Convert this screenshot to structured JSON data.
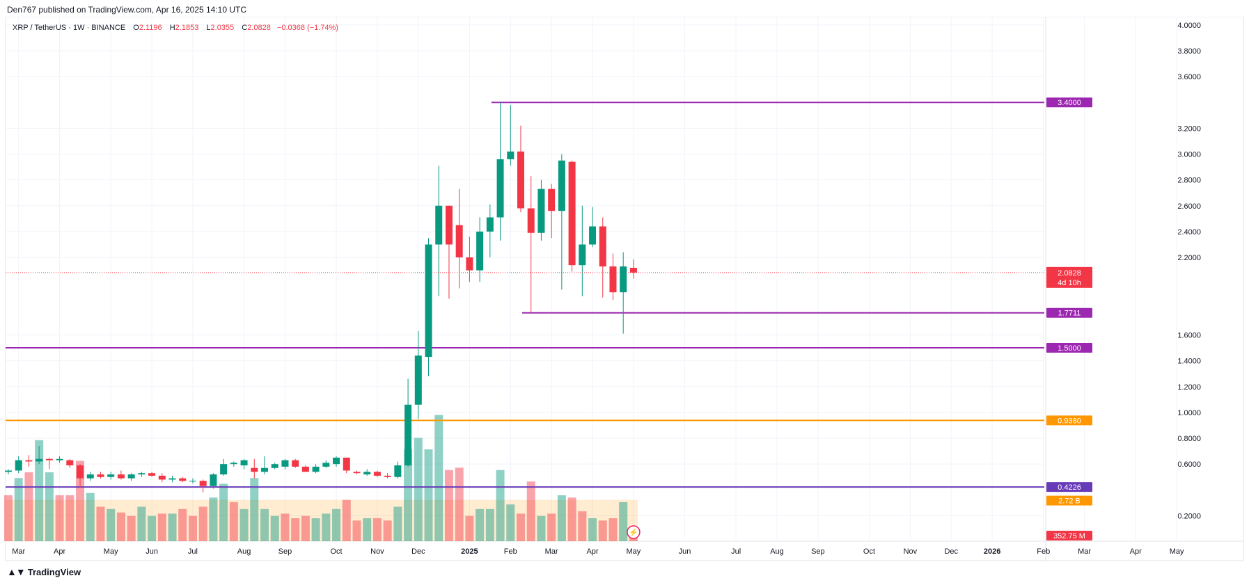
{
  "header": {
    "publisher": "Den767 published on TradingView.com, Apr 16, 2025 14:10 UTC"
  },
  "symbol": {
    "name": "XRP / TetherUS · 1W · BINANCE",
    "open_label": "O",
    "open": "2.1196",
    "high_label": "H",
    "high": "2.1853",
    "low_label": "L",
    "low": "2.0355",
    "close_label": "C",
    "close": "2.0828",
    "change": "−0.0368 (−1.74%)"
  },
  "footer": {
    "brand": "TradingView",
    "logo_icon": "tradingview-logo-icon"
  },
  "colors": {
    "up": "#089981",
    "down": "#f23645",
    "level_purple": "#9c27b0",
    "level_violet": "#673ab7",
    "level_orange": "#ff9800",
    "grid": "#f0f3fa",
    "axis_text": "#131722"
  },
  "chart_data": {
    "type": "candlestick",
    "timeframe": "1W",
    "ylim": [
      0,
      4.0
    ],
    "y_ticks": [
      "4.0000",
      "3.8000",
      "3.6000",
      "3.2000",
      "3.0000",
      "2.8000",
      "2.6000",
      "2.4000",
      "2.2000",
      "1.6000",
      "1.4000",
      "1.2000",
      "1.0000",
      "0.8000",
      "0.6000",
      "0.2000"
    ],
    "x_labels": [
      {
        "label": "Mar",
        "week": 1
      },
      {
        "label": "Apr",
        "week": 5
      },
      {
        "label": "May",
        "week": 10
      },
      {
        "label": "Jun",
        "week": 14
      },
      {
        "label": "Jul",
        "week": 18
      },
      {
        "label": "Aug",
        "week": 23
      },
      {
        "label": "Sep",
        "week": 27
      },
      {
        "label": "Oct",
        "week": 32
      },
      {
        "label": "Nov",
        "week": 36
      },
      {
        "label": "Dec",
        "week": 40
      },
      {
        "label": "2025",
        "week": 45
      },
      {
        "label": "Feb",
        "week": 49
      },
      {
        "label": "Mar",
        "week": 53
      },
      {
        "label": "Apr",
        "week": 57
      },
      {
        "label": "May",
        "week": 61
      },
      {
        "label": "Jun",
        "week": 66
      },
      {
        "label": "Jul",
        "week": 71
      },
      {
        "label": "Aug",
        "week": 75
      },
      {
        "label": "Sep",
        "week": 79
      },
      {
        "label": "Oct",
        "week": 84
      },
      {
        "label": "Nov",
        "week": 88
      },
      {
        "label": "Dec",
        "week": 92
      },
      {
        "label": "2026",
        "week": 96
      },
      {
        "label": "Feb",
        "week": 101
      },
      {
        "label": "Mar",
        "week": 105
      },
      {
        "label": "Apr",
        "week": 110
      },
      {
        "label": "May",
        "week": 114
      }
    ],
    "bold_x_labels": [
      "2025",
      "2026"
    ],
    "candles": [
      {
        "o": 0.54,
        "h": 0.56,
        "l": 0.52,
        "c": 0.55
      },
      {
        "o": 0.55,
        "h": 0.66,
        "l": 0.53,
        "c": 0.63
      },
      {
        "o": 0.63,
        "h": 0.67,
        "l": 0.58,
        "c": 0.62
      },
      {
        "o": 0.62,
        "h": 0.74,
        "l": 0.6,
        "c": 0.64
      },
      {
        "o": 0.64,
        "h": 0.65,
        "l": 0.56,
        "c": 0.63
      },
      {
        "o": 0.63,
        "h": 0.66,
        "l": 0.61,
        "c": 0.64
      },
      {
        "o": 0.63,
        "h": 0.64,
        "l": 0.57,
        "c": 0.59
      },
      {
        "o": 0.59,
        "h": 0.6,
        "l": 0.42,
        "c": 0.49
      },
      {
        "o": 0.49,
        "h": 0.54,
        "l": 0.47,
        "c": 0.52
      },
      {
        "o": 0.52,
        "h": 0.54,
        "l": 0.49,
        "c": 0.5
      },
      {
        "o": 0.5,
        "h": 0.54,
        "l": 0.48,
        "c": 0.52
      },
      {
        "o": 0.52,
        "h": 0.55,
        "l": 0.48,
        "c": 0.49
      },
      {
        "o": 0.49,
        "h": 0.53,
        "l": 0.47,
        "c": 0.52
      },
      {
        "o": 0.52,
        "h": 0.54,
        "l": 0.5,
        "c": 0.53
      },
      {
        "o": 0.53,
        "h": 0.54,
        "l": 0.5,
        "c": 0.51
      },
      {
        "o": 0.51,
        "h": 0.53,
        "l": 0.46,
        "c": 0.48
      },
      {
        "o": 0.48,
        "h": 0.51,
        "l": 0.46,
        "c": 0.49
      },
      {
        "o": 0.49,
        "h": 0.5,
        "l": 0.46,
        "c": 0.47
      },
      {
        "o": 0.47,
        "h": 0.49,
        "l": 0.45,
        "c": 0.47
      },
      {
        "o": 0.47,
        "h": 0.48,
        "l": 0.38,
        "c": 0.43
      },
      {
        "o": 0.43,
        "h": 0.53,
        "l": 0.41,
        "c": 0.52
      },
      {
        "o": 0.52,
        "h": 0.64,
        "l": 0.51,
        "c": 0.6
      },
      {
        "o": 0.6,
        "h": 0.62,
        "l": 0.58,
        "c": 0.61
      },
      {
        "o": 0.59,
        "h": 0.64,
        "l": 0.56,
        "c": 0.63
      },
      {
        "o": 0.57,
        "h": 0.64,
        "l": 0.49,
        "c": 0.54
      },
      {
        "o": 0.54,
        "h": 0.66,
        "l": 0.52,
        "c": 0.57
      },
      {
        "o": 0.57,
        "h": 0.61,
        "l": 0.56,
        "c": 0.6
      },
      {
        "o": 0.58,
        "h": 0.64,
        "l": 0.56,
        "c": 0.63
      },
      {
        "o": 0.63,
        "h": 0.64,
        "l": 0.57,
        "c": 0.58
      },
      {
        "o": 0.58,
        "h": 0.59,
        "l": 0.55,
        "c": 0.54
      },
      {
        "o": 0.54,
        "h": 0.6,
        "l": 0.53,
        "c": 0.58
      },
      {
        "o": 0.58,
        "h": 0.63,
        "l": 0.57,
        "c": 0.61
      },
      {
        "o": 0.6,
        "h": 0.66,
        "l": 0.58,
        "c": 0.65
      },
      {
        "o": 0.65,
        "h": 0.65,
        "l": 0.53,
        "c": 0.55
      },
      {
        "o": 0.54,
        "h": 0.55,
        "l": 0.52,
        "c": 0.53
      },
      {
        "o": 0.52,
        "h": 0.56,
        "l": 0.51,
        "c": 0.54
      },
      {
        "o": 0.54,
        "h": 0.55,
        "l": 0.5,
        "c": 0.51
      },
      {
        "o": 0.51,
        "h": 0.53,
        "l": 0.49,
        "c": 0.5
      },
      {
        "o": 0.5,
        "h": 0.62,
        "l": 0.49,
        "c": 0.59
      },
      {
        "o": 0.59,
        "h": 1.26,
        "l": 0.58,
        "c": 1.06
      },
      {
        "o": 1.06,
        "h": 1.63,
        "l": 0.95,
        "c": 1.44
      },
      {
        "o": 1.43,
        "h": 2.35,
        "l": 1.28,
        "c": 2.3
      },
      {
        "o": 2.3,
        "h": 2.91,
        "l": 1.9,
        "c": 2.6
      },
      {
        "o": 2.6,
        "h": 2.6,
        "l": 1.88,
        "c": 2.3
      },
      {
        "o": 2.45,
        "h": 2.73,
        "l": 1.96,
        "c": 2.2
      },
      {
        "o": 2.2,
        "h": 2.36,
        "l": 2.01,
        "c": 2.1
      },
      {
        "o": 2.1,
        "h": 2.51,
        "l": 2.01,
        "c": 2.4
      },
      {
        "o": 2.4,
        "h": 2.61,
        "l": 2.2,
        "c": 2.51
      },
      {
        "o": 2.51,
        "h": 3.4,
        "l": 2.33,
        "c": 2.96
      },
      {
        "o": 2.96,
        "h": 3.38,
        "l": 2.91,
        "c": 3.02
      },
      {
        "o": 3.02,
        "h": 3.22,
        "l": 2.55,
        "c": 2.58
      },
      {
        "o": 2.58,
        "h": 2.83,
        "l": 1.77,
        "c": 2.39
      },
      {
        "o": 2.39,
        "h": 2.8,
        "l": 2.33,
        "c": 2.73
      },
      {
        "o": 2.73,
        "h": 2.77,
        "l": 2.35,
        "c": 2.56
      },
      {
        "o": 2.56,
        "h": 3.0,
        "l": 1.95,
        "c": 2.95
      },
      {
        "o": 2.94,
        "h": 2.95,
        "l": 2.09,
        "c": 2.14
      },
      {
        "o": 2.14,
        "h": 2.6,
        "l": 1.9,
        "c": 2.3
      },
      {
        "o": 2.3,
        "h": 2.59,
        "l": 2.28,
        "c": 2.44
      },
      {
        "o": 2.44,
        "h": 2.51,
        "l": 1.89,
        "c": 2.13
      },
      {
        "o": 2.13,
        "h": 2.23,
        "l": 1.87,
        "c": 1.93
      },
      {
        "o": 1.93,
        "h": 2.24,
        "l": 1.61,
        "c": 2.13
      },
      {
        "o": 2.1196,
        "h": 2.1853,
        "l": 2.0355,
        "c": 2.0828
      }
    ],
    "volume": [
      {
        "v": 0.4,
        "up": false
      },
      {
        "v": 0.55,
        "up": true
      },
      {
        "v": 0.6,
        "up": false
      },
      {
        "v": 0.88,
        "up": true
      },
      {
        "v": 0.6,
        "up": true
      },
      {
        "v": 0.4,
        "up": false
      },
      {
        "v": 0.4,
        "up": false
      },
      {
        "v": 0.7,
        "up": false
      },
      {
        "v": 0.42,
        "up": true
      },
      {
        "v": 0.3,
        "up": false
      },
      {
        "v": 0.28,
        "up": true
      },
      {
        "v": 0.25,
        "up": false
      },
      {
        "v": 0.22,
        "up": false
      },
      {
        "v": 0.3,
        "up": true
      },
      {
        "v": 0.22,
        "up": true
      },
      {
        "v": 0.24,
        "up": false
      },
      {
        "v": 0.24,
        "up": true
      },
      {
        "v": 0.28,
        "up": false
      },
      {
        "v": 0.22,
        "up": false
      },
      {
        "v": 0.3,
        "up": false
      },
      {
        "v": 0.38,
        "up": true
      },
      {
        "v": 0.5,
        "up": true
      },
      {
        "v": 0.34,
        "up": false
      },
      {
        "v": 0.28,
        "up": true
      },
      {
        "v": 0.55,
        "up": true
      },
      {
        "v": 0.28,
        "up": true
      },
      {
        "v": 0.22,
        "up": true
      },
      {
        "v": 0.24,
        "up": false
      },
      {
        "v": 0.2,
        "up": false
      },
      {
        "v": 0.22,
        "up": false
      },
      {
        "v": 0.2,
        "up": true
      },
      {
        "v": 0.24,
        "up": true
      },
      {
        "v": 0.28,
        "up": true
      },
      {
        "v": 0.36,
        "up": false
      },
      {
        "v": 0.18,
        "up": false
      },
      {
        "v": 0.2,
        "up": true
      },
      {
        "v": 0.2,
        "up": false
      },
      {
        "v": 0.18,
        "up": false
      },
      {
        "v": 0.3,
        "up": true
      },
      {
        "v": 0.8,
        "up": true
      },
      {
        "v": 0.9,
        "up": true
      },
      {
        "v": 0.8,
        "up": true
      },
      {
        "v": 1.1,
        "up": true
      },
      {
        "v": 0.62,
        "up": false
      },
      {
        "v": 0.64,
        "up": false
      },
      {
        "v": 0.22,
        "up": false
      },
      {
        "v": 0.28,
        "up": true
      },
      {
        "v": 0.28,
        "up": true
      },
      {
        "v": 0.62,
        "up": true
      },
      {
        "v": 0.32,
        "up": true
      },
      {
        "v": 0.24,
        "up": false
      },
      {
        "v": 0.52,
        "up": false
      },
      {
        "v": 0.22,
        "up": true
      },
      {
        "v": 0.24,
        "up": false
      },
      {
        "v": 0.4,
        "up": true
      },
      {
        "v": 0.38,
        "up": false
      },
      {
        "v": 0.26,
        "up": false
      },
      {
        "v": 0.2,
        "up": true
      },
      {
        "v": 0.18,
        "up": false
      },
      {
        "v": 0.2,
        "up": false
      },
      {
        "v": 0.34,
        "up": true
      },
      {
        "v": 0.08,
        "up": false
      }
    ],
    "volume_ma_level": 0.36,
    "levels": [
      {
        "price": 3.4,
        "label": "3.4000",
        "color": "#9c27b0",
        "start_week": 47
      },
      {
        "price": 1.7711,
        "label": "1.7711",
        "color": "#9c27b0",
        "start_week": 50
      },
      {
        "price": 1.5,
        "label": "1.5000",
        "color": "#9c27b0",
        "start_week": 0
      },
      {
        "price": 0.938,
        "label": "0.9380",
        "color": "#ff9800",
        "start_week": 0
      },
      {
        "price": 0.4226,
        "label": "0.4226",
        "color": "#673ab7",
        "start_week": 0
      }
    ],
    "last_price": {
      "price": 2.0828,
      "label": "2.0828",
      "countdown": "4d 10h",
      "color": "#f23645"
    },
    "volume_ma_label": {
      "label": "2.72 B",
      "color": "#ff9800"
    },
    "volume_label": {
      "label": "352.75 M",
      "color": "#f23645"
    }
  }
}
